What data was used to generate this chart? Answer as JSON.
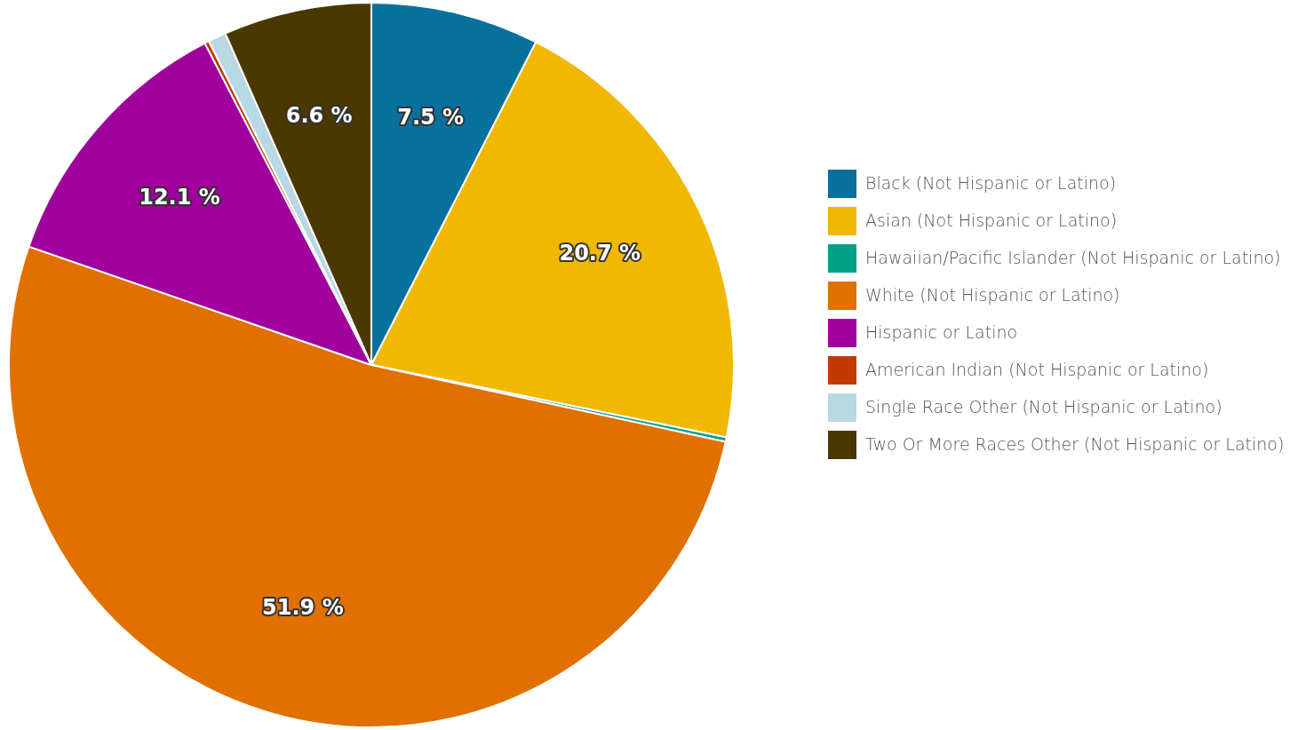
{
  "chart_data": {
    "type": "pie",
    "categories": [
      "Black (Not Hispanic or Latino)",
      "Asian (Not Hispanic or Latino)",
      "Hawaiian/Pacific Islander (Not Hispanic or Latino)",
      "White (Not Hispanic or Latino)",
      "Hispanic or Latino",
      "American Indian (Not Hispanic or Latino)",
      "Single Race Other (Not Hispanic or Latino)",
      "Two Or More Races Other (Not Hispanic or Latino)"
    ],
    "values": [
      7.5,
      20.7,
      0.2,
      51.9,
      12.1,
      0.2,
      0.8,
      6.6
    ],
    "colors": [
      "#08709c",
      "#f0b800",
      "#00a087",
      "#e07000",
      "#a0009c",
      "#c23a00",
      "#b8d8e4",
      "#4a3800"
    ],
    "value_labels": [
      "7.5 %",
      "20.7 %",
      null,
      "51.9 %",
      "12.1 %",
      null,
      null,
      "6.6 %"
    ],
    "legend": "right"
  }
}
